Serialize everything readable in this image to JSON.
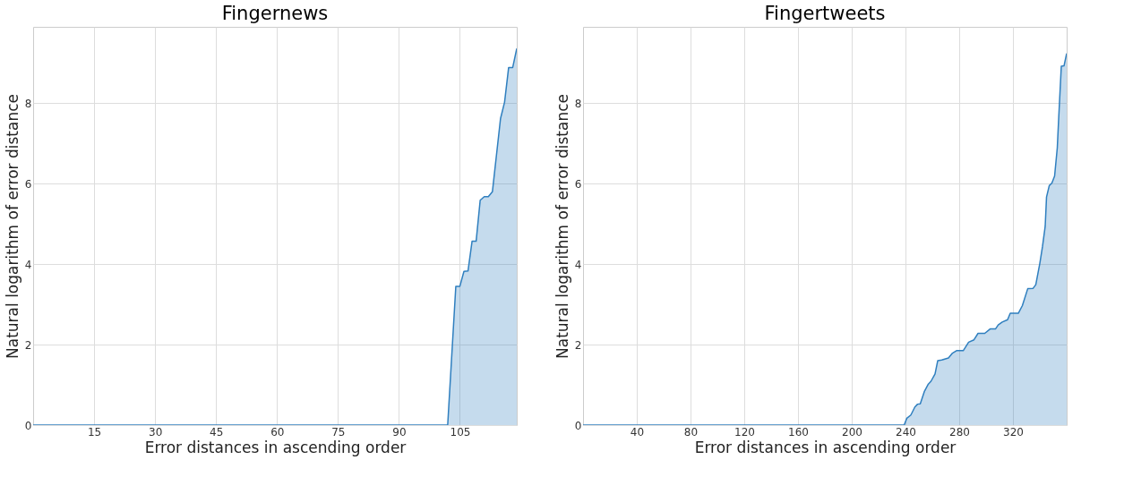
{
  "chart_data": [
    {
      "type": "area",
      "title": "Fingernews",
      "xlabel": "Error distances in ascending order",
      "ylabel": "Natural logarithm of error distance",
      "x": [
        0,
        102,
        104,
        105,
        106,
        107,
        108,
        109,
        110,
        111,
        112,
        113,
        115,
        116,
        117,
        118,
        119
      ],
      "series": [
        {
          "color": "#2f7fbf",
          "values": [
            0,
            0,
            3.45,
            3.45,
            3.82,
            3.83,
            4.57,
            4.57,
            5.59,
            5.68,
            5.68,
            5.8,
            7.62,
            8.03,
            8.89,
            8.89,
            9.36
          ]
        }
      ],
      "xlim": [
        0,
        119
      ],
      "xticks": [
        15,
        30,
        45,
        60,
        75,
        90,
        105
      ],
      "ylim": [
        0,
        9.9
      ],
      "yticks": [
        0,
        2,
        4,
        6,
        8
      ],
      "grid": true
    },
    {
      "type": "area",
      "title": "Fingertweets",
      "xlabel": "Error distances in ascending order",
      "ylabel": "Natural logarithm of error distance",
      "x": [
        0,
        239,
        241,
        244,
        247,
        249,
        251,
        254,
        257,
        259,
        262,
        264,
        267,
        272,
        275,
        278,
        283,
        287,
        291,
        294,
        299,
        303,
        307,
        309,
        312,
        316,
        318,
        324,
        327,
        331,
        335,
        337,
        340,
        342,
        344,
        345,
        347,
        349,
        351,
        353,
        354,
        356,
        358,
        360
      ],
      "series": [
        {
          "color": "#2f7fbf",
          "values": [
            0,
            0,
            0.17,
            0.25,
            0.45,
            0.52,
            0.53,
            0.83,
            1.02,
            1.09,
            1.27,
            1.6,
            1.62,
            1.67,
            1.79,
            1.85,
            1.85,
            2.06,
            2.12,
            2.28,
            2.28,
            2.39,
            2.39,
            2.49,
            2.56,
            2.62,
            2.78,
            2.78,
            2.97,
            3.39,
            3.4,
            3.49,
            4.02,
            4.44,
            4.94,
            5.67,
            5.95,
            6.02,
            6.19,
            6.89,
            7.59,
            8.92,
            8.93,
            9.24
          ]
        }
      ],
      "xlim": [
        0,
        360
      ],
      "xticks": [
        40,
        80,
        120,
        160,
        200,
        240,
        280,
        320
      ],
      "ylim": [
        0,
        9.9
      ],
      "yticks": [
        0,
        2,
        4,
        6,
        8
      ],
      "grid": true
    }
  ]
}
